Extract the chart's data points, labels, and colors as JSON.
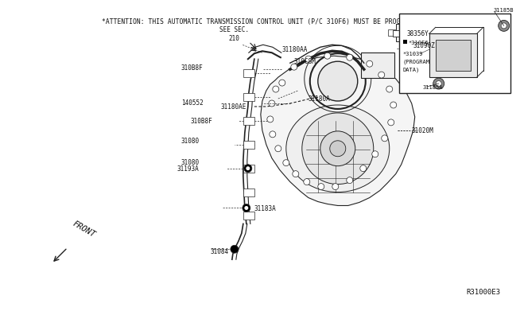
{
  "bg_color": "#ffffff",
  "title_text": "*ATTENTION: THIS AUTOMATIC TRANSMISSION CONTROL UNIT (P/C 310F6) MUST BE PROGRAMMED",
  "ref_code": "R31000E3",
  "front_label": "FRONT",
  "lc": "#222222",
  "tc": "#111111",
  "title_fontsize": 5.8,
  "label_fontsize": 5.5,
  "ref_fontsize": 6.5,
  "front_fontsize": 7.5
}
